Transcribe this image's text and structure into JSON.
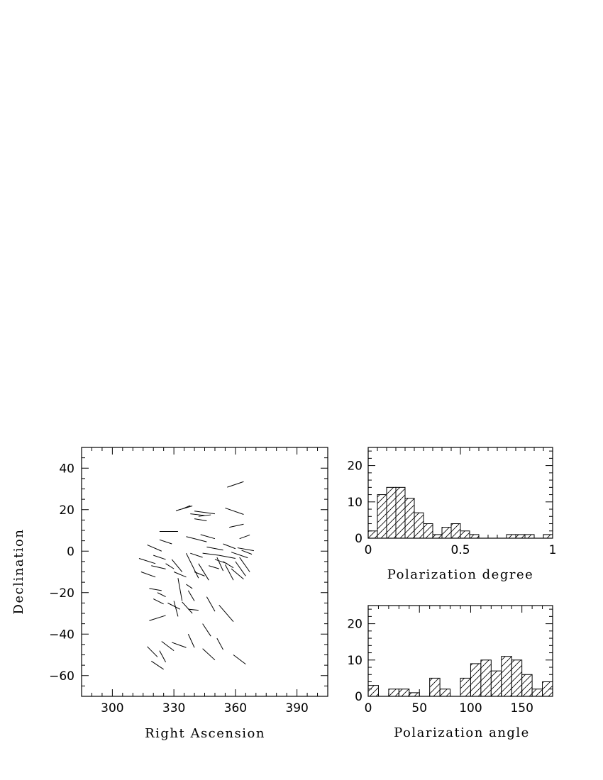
{
  "colors": {
    "ink": "#000000",
    "background": "#ffffff"
  },
  "chart_data": [
    {
      "type": "scatter",
      "subtype": "polarization-vector-map",
      "title": "",
      "xlabel": "Right Ascension",
      "ylabel": "Declination",
      "xlim": [
        285,
        405
      ],
      "ylim": [
        -70,
        50
      ],
      "xticks": [
        300,
        330,
        360,
        390
      ],
      "xtick_labels": [
        "300",
        "330",
        "360",
        "390"
      ],
      "yticks": [
        40,
        20,
        0,
        -20,
        -40,
        -60
      ],
      "ytick_labels": [
        "40",
        "20",
        "0",
        "−20",
        "−40",
        "−60"
      ],
      "grid": false,
      "segments": [
        [
          356,
          30.8,
          364,
          33.5
        ],
        [
          331,
          19.5,
          339,
          21.8
        ],
        [
          334,
          20.3,
          338,
          22.0
        ],
        [
          340,
          19.3,
          350,
          18.0
        ],
        [
          338,
          18.0,
          345,
          17.2
        ],
        [
          342,
          16.8,
          348,
          17.5
        ],
        [
          340,
          15.6,
          346,
          14.6
        ],
        [
          355,
          20.8,
          364,
          17.7
        ],
        [
          357,
          11.5,
          364,
          13.0
        ],
        [
          362,
          6.0,
          367,
          7.8
        ],
        [
          323,
          9.5,
          332,
          9.5
        ],
        [
          336,
          7.0,
          346,
          4.5
        ],
        [
          343,
          8.0,
          350,
          6.0
        ],
        [
          323,
          5.5,
          329,
          3.5
        ],
        [
          346,
          2.0,
          354,
          0.5
        ],
        [
          354,
          3.5,
          360,
          1.2
        ],
        [
          361,
          1.6,
          369,
          0.2
        ],
        [
          363,
          0.4,
          368,
          -1.5
        ],
        [
          338,
          -1.0,
          344,
          -3.0
        ],
        [
          344,
          -1.0,
          352,
          -2.0
        ],
        [
          352,
          -2.0,
          360,
          -3.5
        ],
        [
          358,
          -0.5,
          366,
          -3.2
        ],
        [
          317,
          3.0,
          324,
          0.0
        ],
        [
          320,
          -2.0,
          326,
          -4.0
        ],
        [
          313,
          -3.5,
          321,
          -6.0
        ],
        [
          319,
          -7.0,
          326,
          -8.6
        ],
        [
          314,
          -10.0,
          321,
          -12.5
        ],
        [
          329,
          -4.0,
          334,
          -10.0
        ],
        [
          336,
          -1.0,
          342,
          -13.0
        ],
        [
          342,
          -6.0,
          347,
          -14.0
        ],
        [
          347,
          -7.0,
          352,
          -8.5
        ],
        [
          350,
          -4.0,
          356,
          -6.0
        ],
        [
          351,
          -3.0,
          354,
          -9.5
        ],
        [
          354,
          -5.0,
          359,
          -8.0
        ],
        [
          355,
          -6.5,
          359,
          -14.0
        ],
        [
          358,
          -8.5,
          364,
          -13.5
        ],
        [
          360,
          -5.0,
          365,
          -12.0
        ],
        [
          362,
          -3.0,
          367,
          -10.0
        ],
        [
          326,
          -6.0,
          330,
          -8.5
        ],
        [
          330,
          -10.0,
          336,
          -12.5
        ],
        [
          332,
          -13.0,
          334,
          -24.0
        ],
        [
          336,
          -16.0,
          339,
          -18.0
        ],
        [
          337,
          -19.0,
          340,
          -24.0
        ],
        [
          318,
          -18.0,
          324,
          -19.0
        ],
        [
          322,
          -20.0,
          326,
          -22.0
        ],
        [
          320,
          -23.0,
          325,
          -25.5
        ],
        [
          330,
          -24.0,
          332,
          -31.5
        ],
        [
          334,
          -24.5,
          339,
          -30.0
        ],
        [
          337,
          -28.0,
          342,
          -28.5
        ],
        [
          346,
          -22.0,
          350,
          -29.0
        ],
        [
          352,
          -26.0,
          359,
          -34.0
        ],
        [
          318,
          -33.5,
          326,
          -31.0
        ],
        [
          324,
          -43.5,
          330,
          -48.0
        ],
        [
          329,
          -44.0,
          336,
          -46.5
        ],
        [
          337,
          -40.0,
          340,
          -46.5
        ],
        [
          344,
          -35.0,
          348,
          -41.0
        ],
        [
          351,
          -42.0,
          354,
          -47.5
        ],
        [
          344,
          -47.0,
          350,
          -52.5
        ],
        [
          359,
          -50.0,
          365,
          -54.5
        ],
        [
          317,
          -46.0,
          322,
          -51.0
        ],
        [
          319,
          -53.0,
          325,
          -57.0
        ],
        [
          323,
          -48.0,
          326,
          -53.5
        ],
        [
          327,
          -25.0,
          333,
          -28.0
        ],
        [
          340,
          -10.0,
          345,
          -12.0
        ]
      ]
    },
    {
      "type": "bar",
      "subtype": "histogram",
      "title": "",
      "xlabel": "Polarization degree",
      "ylabel": "",
      "xlim": [
        0,
        1
      ],
      "ylim": [
        0,
        25
      ],
      "xticks": [
        0,
        0.5,
        1
      ],
      "xtick_labels": [
        "0",
        "0.5",
        "1"
      ],
      "yticks": [
        0,
        10,
        20
      ],
      "ytick_labels": [
        "0",
        "10",
        "20"
      ],
      "bin_edges": [
        0,
        0.05,
        0.1,
        0.15,
        0.2,
        0.25,
        0.3,
        0.35,
        0.4,
        0.45,
        0.5,
        0.55,
        0.6,
        0.65,
        0.7,
        0.75,
        0.8,
        0.85,
        0.9,
        0.95,
        1.0
      ],
      "counts": [
        2,
        12,
        14,
        14,
        11,
        7,
        4,
        1,
        3,
        4,
        2,
        1,
        0,
        0,
        0,
        1,
        1,
        1,
        0,
        1
      ]
    },
    {
      "type": "bar",
      "subtype": "histogram",
      "title": "",
      "xlabel": "Polarization angle",
      "ylabel": "",
      "xlim": [
        0,
        180
      ],
      "ylim": [
        0,
        25
      ],
      "xticks": [
        0,
        50,
        100,
        150
      ],
      "xtick_labels": [
        "0",
        "50",
        "100",
        "150"
      ],
      "yticks": [
        0,
        10,
        20
      ],
      "ytick_labels": [
        "0",
        "10",
        "20"
      ],
      "bin_edges": [
        0,
        10,
        20,
        30,
        40,
        50,
        60,
        70,
        80,
        90,
        100,
        110,
        120,
        130,
        140,
        150,
        160,
        170,
        180
      ],
      "counts": [
        3,
        0,
        2,
        2,
        1,
        0,
        5,
        2,
        0,
        5,
        9,
        10,
        7,
        11,
        10,
        6,
        2,
        4
      ]
    }
  ]
}
